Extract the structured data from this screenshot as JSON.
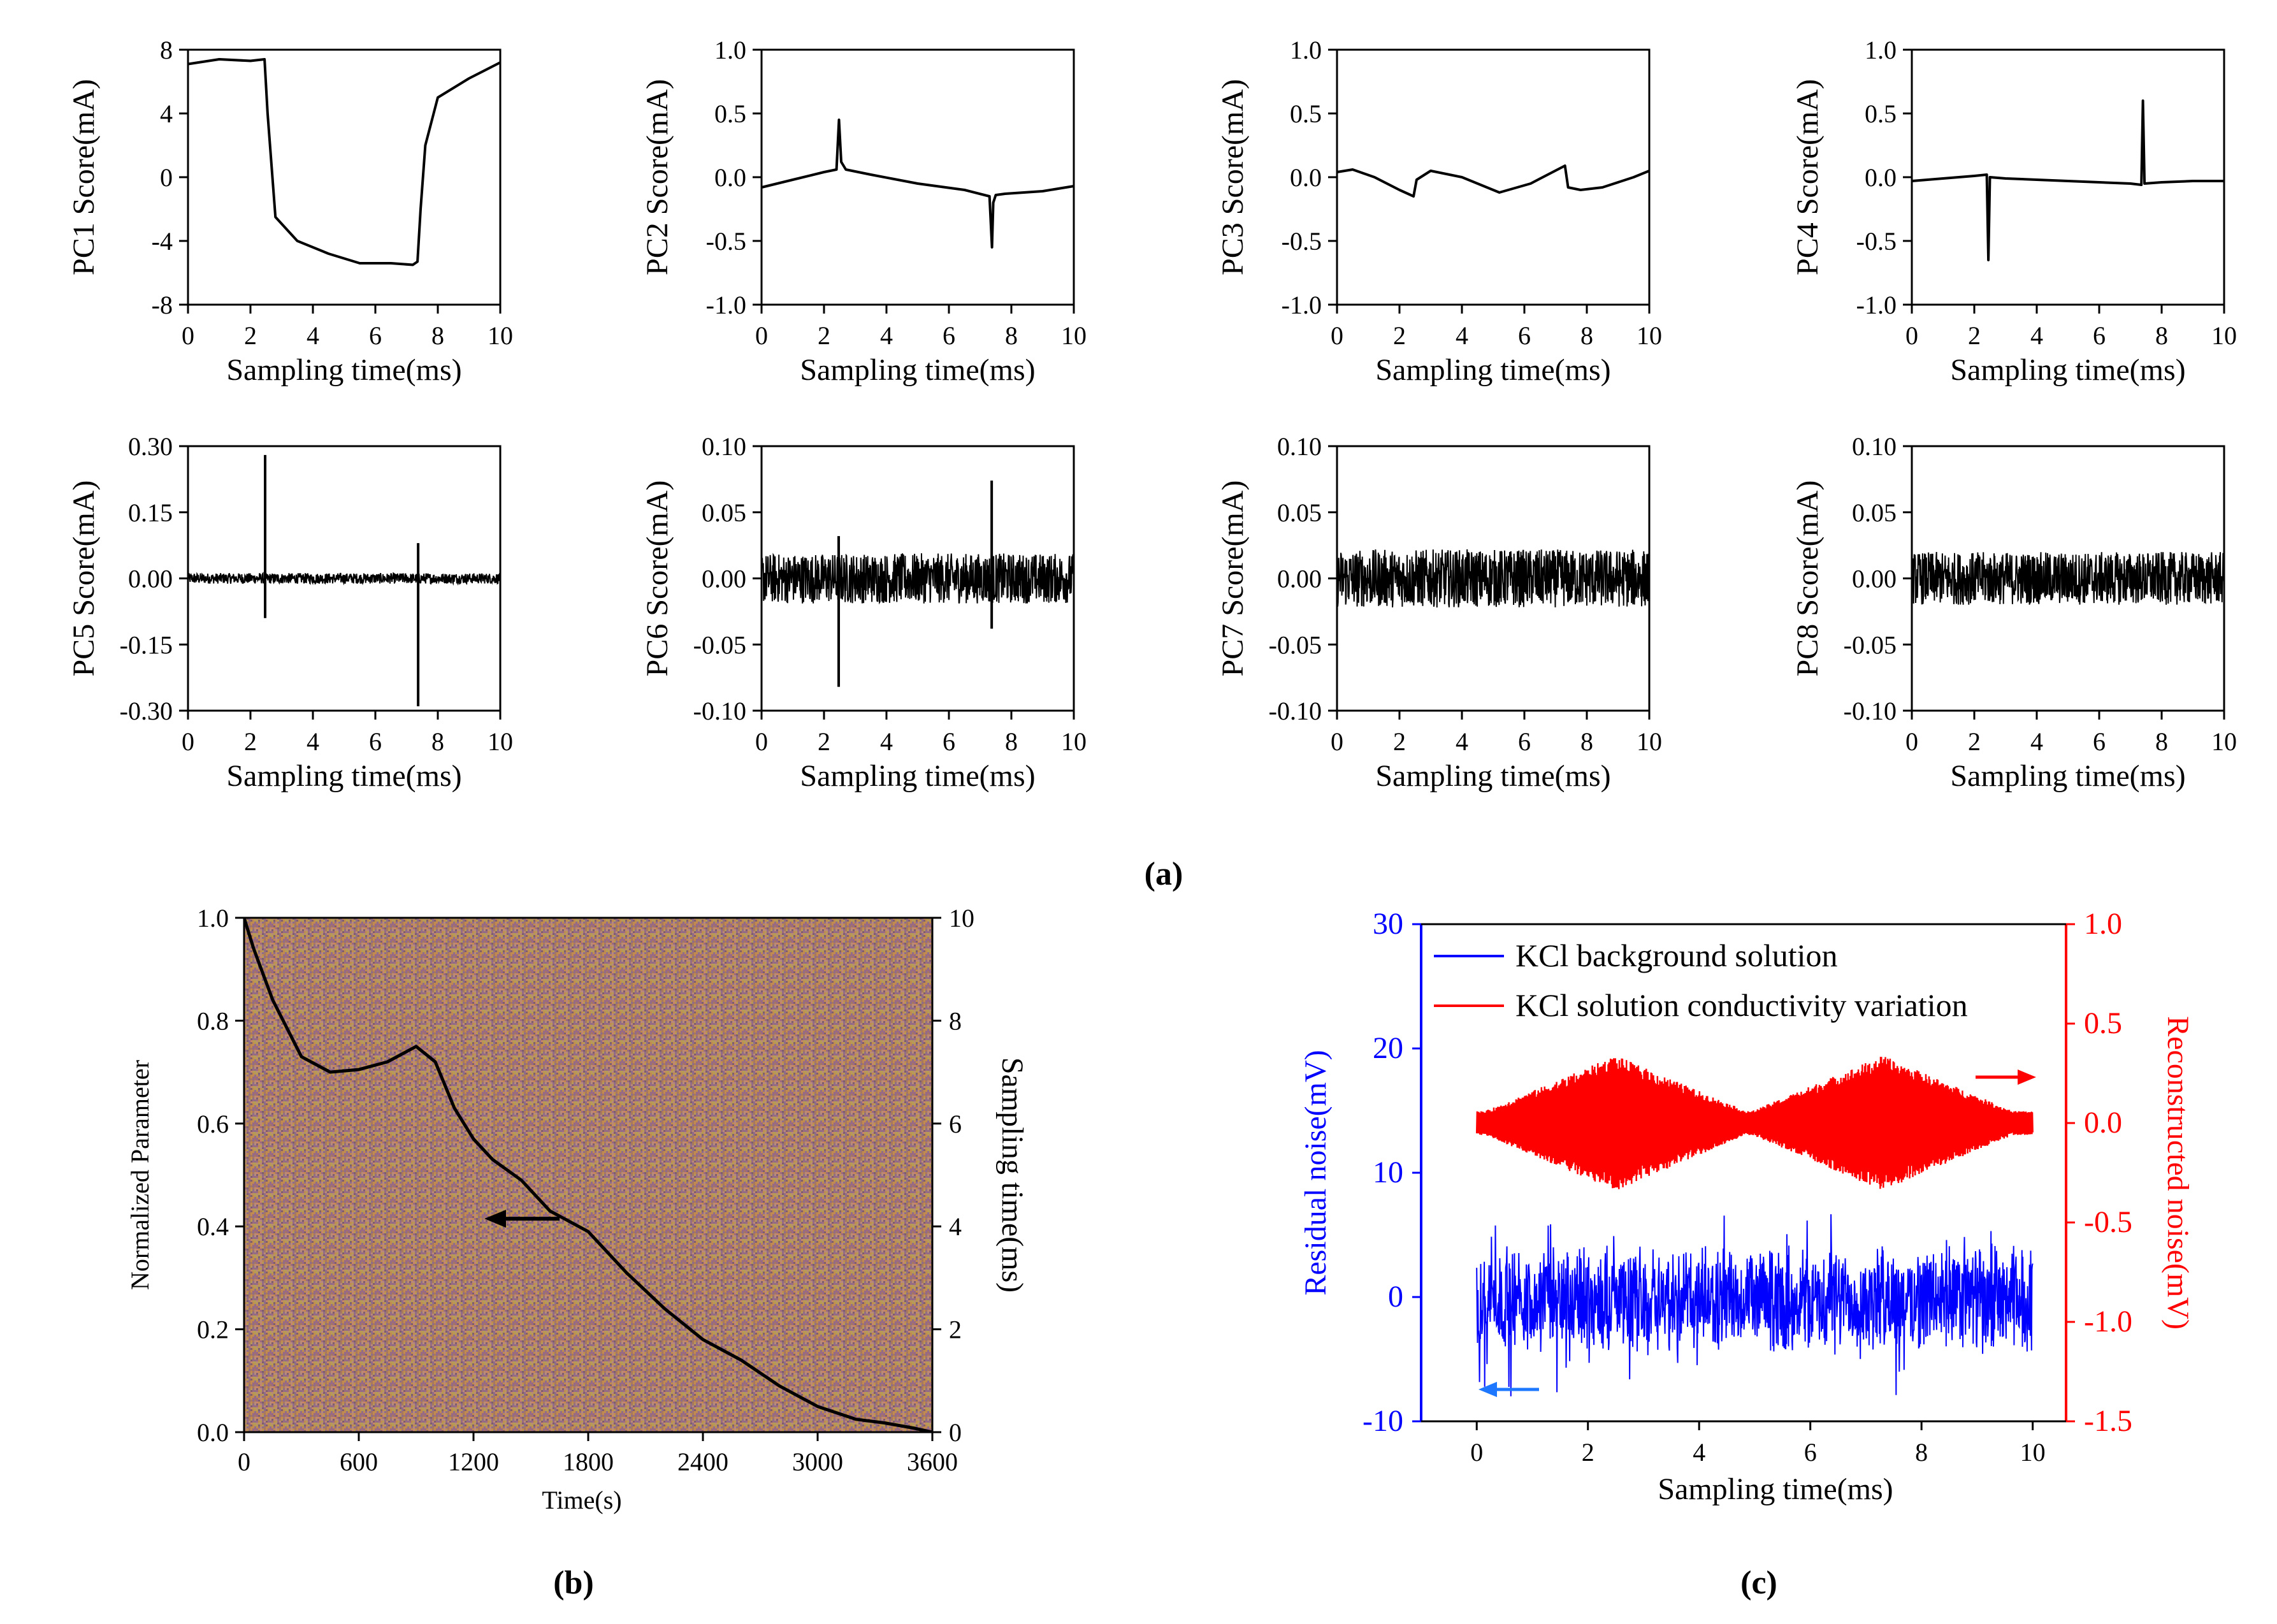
{
  "figure": {
    "label_a": "(a)",
    "label_b": "(b)",
    "label_c": "(c)"
  },
  "chart_data": [
    {
      "type": "line",
      "id": "pc1",
      "ylabel": "PC1 Score(mA)",
      "xlabel": "Sampling time(ms)",
      "xlim": [
        0,
        10
      ],
      "ylim": [
        -8,
        8
      ],
      "xticks": [
        "0",
        "2",
        "4",
        "6",
        "8",
        "10"
      ],
      "yticks": [
        "8",
        "4",
        "0",
        "-4",
        "-8"
      ],
      "x": [
        0,
        1,
        2,
        2.45,
        2.55,
        2.8,
        3.5,
        4.5,
        5.5,
        6.5,
        7.2,
        7.35,
        7.45,
        7.6,
        8,
        9,
        10
      ],
      "values": [
        7.1,
        7.4,
        7.3,
        7.4,
        4,
        -2.5,
        -4,
        -4.8,
        -5.4,
        -5.4,
        -5.5,
        -5.3,
        -2,
        2,
        5,
        6.2,
        7.2
      ]
    },
    {
      "type": "line",
      "id": "pc2",
      "ylabel": "PC2 Score(mA)",
      "xlabel": "Sampling time(ms)",
      "xlim": [
        0,
        10
      ],
      "ylim": [
        -1,
        1
      ],
      "xticks": [
        "0",
        "2",
        "4",
        "6",
        "8",
        "10"
      ],
      "yticks": [
        "1.0",
        "0.5",
        "0.0",
        "-0.5",
        "-1.0"
      ],
      "x": [
        0,
        1,
        2,
        2.4,
        2.48,
        2.55,
        2.7,
        3.5,
        5,
        6.5,
        7.3,
        7.38,
        7.42,
        7.5,
        7.8,
        9,
        10
      ],
      "values": [
        -0.08,
        -0.02,
        0.04,
        0.06,
        0.45,
        0.12,
        0.06,
        0.02,
        -0.05,
        -0.1,
        -0.15,
        -0.55,
        -0.2,
        -0.14,
        -0.13,
        -0.11,
        -0.07
      ]
    },
    {
      "type": "line",
      "id": "pc3",
      "ylabel": "PC3 Score(mA)",
      "xlabel": "Sampling time(ms)",
      "xlim": [
        0,
        10
      ],
      "ylim": [
        -1,
        1
      ],
      "xticks": [
        "0",
        "2",
        "4",
        "6",
        "8",
        "10"
      ],
      "yticks": [
        "1.0",
        "0.5",
        "0.0",
        "-0.5",
        "-1.0"
      ],
      "x": [
        0,
        0.5,
        1.2,
        2,
        2.45,
        2.55,
        3,
        4,
        5.2,
        6.2,
        7.3,
        7.4,
        7.8,
        8.5,
        9.5,
        10
      ],
      "values": [
        0.04,
        0.06,
        0.0,
        -0.1,
        -0.15,
        -0.02,
        0.05,
        0.0,
        -0.12,
        -0.05,
        0.09,
        -0.08,
        -0.1,
        -0.08,
        0.0,
        0.05
      ]
    },
    {
      "type": "line",
      "id": "pc4",
      "ylabel": "PC4 Score(mA)",
      "xlabel": "Sampling time(ms)",
      "xlim": [
        0,
        10
      ],
      "ylim": [
        -1,
        1
      ],
      "xticks": [
        "0",
        "2",
        "4",
        "6",
        "8",
        "10"
      ],
      "yticks": [
        "1.0",
        "0.5",
        "0.0",
        "-0.5",
        "-1.0"
      ],
      "x": [
        0,
        1,
        2,
        2.4,
        2.45,
        2.5,
        3,
        4,
        5,
        6,
        7,
        7.35,
        7.4,
        7.45,
        8,
        9,
        10
      ],
      "values": [
        -0.03,
        -0.01,
        0.01,
        0.02,
        -0.65,
        0.0,
        -0.01,
        -0.02,
        -0.03,
        -0.04,
        -0.05,
        -0.06,
        0.6,
        -0.05,
        -0.04,
        -0.03,
        -0.03
      ]
    },
    {
      "type": "line",
      "id": "pc5",
      "ylabel": "PC5 Score(mA)",
      "xlabel": "Sampling time(ms)",
      "xlim": [
        0,
        10
      ],
      "ylim": [
        -0.3,
        0.3
      ],
      "xticks": [
        "0",
        "2",
        "4",
        "6",
        "8",
        "10"
      ],
      "yticks": [
        "0.30",
        "0.15",
        "0.00",
        "-0.15",
        "-0.30"
      ],
      "noise_amp": 0.012,
      "x": [
        2.47,
        7.37
      ],
      "spike_high": [
        0.28,
        0.08
      ],
      "spike_low": [
        -0.09,
        -0.29
      ]
    },
    {
      "type": "line",
      "id": "pc6",
      "ylabel": "PC6 Score(mA)",
      "xlabel": "Sampling time(ms)",
      "xlim": [
        0,
        10
      ],
      "ylim": [
        -0.1,
        0.1
      ],
      "xticks": [
        "0",
        "2",
        "4",
        "6",
        "8",
        "10"
      ],
      "yticks": [
        "0.10",
        "0.05",
        "0.00",
        "-0.05",
        "-0.10"
      ],
      "noise_amp": 0.019,
      "x": [
        2.47,
        7.37
      ],
      "spike_high": [
        0.032,
        0.074
      ],
      "spike_low": [
        -0.082,
        -0.038
      ]
    },
    {
      "type": "line",
      "id": "pc7",
      "ylabel": "PC7 Score(mA)",
      "xlabel": "Sampling time(ms)",
      "xlim": [
        0,
        10
      ],
      "ylim": [
        -0.1,
        0.1
      ],
      "xticks": [
        "0",
        "2",
        "4",
        "6",
        "8",
        "10"
      ],
      "yticks": [
        "0.10",
        "0.05",
        "0.00",
        "-0.05",
        "-0.10"
      ],
      "noise_amp": 0.022,
      "x": [],
      "spike_high": [],
      "spike_low": []
    },
    {
      "type": "line",
      "id": "pc8",
      "ylabel": "PC8 Score(mA)",
      "xlabel": "Sampling time(ms)",
      "xlim": [
        0,
        10
      ],
      "ylim": [
        -0.1,
        0.1
      ],
      "xticks": [
        "0",
        "2",
        "4",
        "6",
        "8",
        "10"
      ],
      "yticks": [
        "0.10",
        "0.05",
        "0.00",
        "-0.05",
        "-0.10"
      ],
      "noise_amp": 0.02,
      "x": [],
      "spike_high": [],
      "spike_low": []
    },
    {
      "type": "heatmap",
      "id": "b",
      "xlabel": "Time(s)",
      "ylabel": "Normalized Parameter",
      "ylabel_right": "Sampling time(ms)",
      "xlim": [
        0,
        3600
      ],
      "ylim": [
        0,
        1
      ],
      "ylim_right": [
        0,
        10
      ],
      "xticks": [
        "0",
        "600",
        "1200",
        "1800",
        "2400",
        "3000",
        "3600"
      ],
      "yticks": [
        "0.0",
        "0.2",
        "0.4",
        "0.6",
        "0.8",
        "1.0"
      ],
      "yticks_right": [
        "0",
        "2",
        "4",
        "6",
        "8",
        "10"
      ],
      "background_colors": [
        "#c9846a",
        "#9a6a83",
        "#b69a55",
        "#a7775f",
        "#8f6c8a",
        "#c18a4f",
        "#7f5f6e",
        "#b98a78"
      ],
      "curve_x": [
        0,
        50,
        150,
        300,
        450,
        600,
        750,
        900,
        1000,
        1100,
        1200,
        1300,
        1450,
        1600,
        1800,
        2000,
        2200,
        2400,
        2600,
        2800,
        3000,
        3200,
        3350,
        3500,
        3600
      ],
      "curve_y": [
        1.0,
        0.94,
        0.84,
        0.73,
        0.7,
        0.705,
        0.72,
        0.75,
        0.72,
        0.63,
        0.57,
        0.53,
        0.49,
        0.43,
        0.39,
        0.31,
        0.24,
        0.18,
        0.14,
        0.09,
        0.05,
        0.025,
        0.018,
        0.008,
        0.0
      ]
    },
    {
      "type": "line",
      "id": "c",
      "xlabel": "Sampling time(ms)",
      "ylabel": "Residual noise(mV)",
      "ylabel_right": "Reconstructed noise(mV)",
      "xlim": [
        -1,
        10.6
      ],
      "ylim": [
        -10,
        30
      ],
      "ylim_right": [
        -1.5,
        1.0
      ],
      "xticks": [
        "0",
        "2",
        "4",
        "6",
        "8",
        "10"
      ],
      "yticks": [
        "30",
        "20",
        "10",
        "0",
        "-10"
      ],
      "yticks_right": [
        "1.0",
        "0.5",
        "0.0",
        "-0.5",
        "-1.0",
        "-1.5"
      ],
      "series": [
        {
          "name": "KCl background solution",
          "color": "#0000ff",
          "axis": "left",
          "center": -0.2,
          "amp": 4.5,
          "x_range": [
            0,
            10
          ]
        },
        {
          "name": "KCl solution conductivity variation",
          "color": "#ff0000",
          "axis": "right",
          "center": 0.0,
          "envelope_max": 0.34,
          "envelope_min": 0.06,
          "peaks_at": [
            2.5,
            7.3
          ],
          "x_range": [
            0,
            10
          ]
        }
      ]
    }
  ]
}
